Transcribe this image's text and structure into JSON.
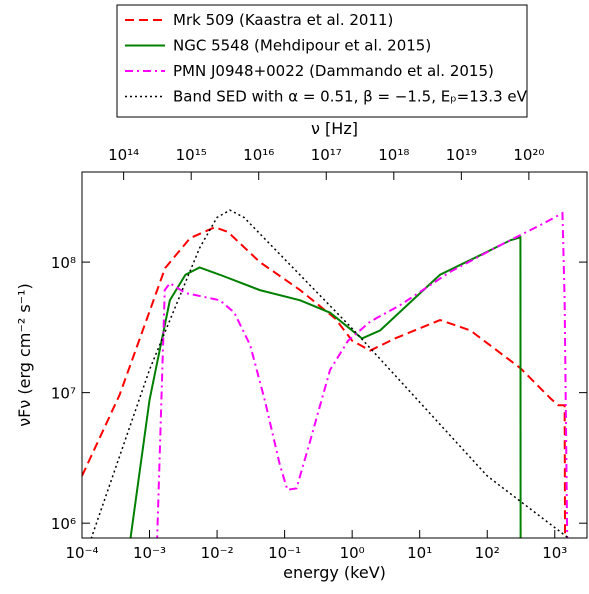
{
  "chart_data": {
    "type": "line",
    "xlabel": "energy (keV)",
    "ylabel": "νFν (erg cm⁻² s⁻¹)",
    "x2label": "ν [Hz]",
    "log_x": true,
    "log_y": true,
    "legend": "upper center",
    "xlim": [
      0.0001,
      3000
    ],
    "ylim": [
      770000,
      490000000
    ],
    "x2lim": [
      24180000000000,
      725400000000000000000
    ],
    "xticks": [
      {
        "value": 0.0001,
        "label": "10⁻⁴"
      },
      {
        "value": 0.001,
        "label": "10⁻³"
      },
      {
        "value": 0.01,
        "label": "10⁻²"
      },
      {
        "value": 0.1,
        "label": "10⁻¹"
      },
      {
        "value": 1,
        "label": "10⁰"
      },
      {
        "value": 10,
        "label": "10¹"
      },
      {
        "value": 100,
        "label": "10²"
      },
      {
        "value": 1000,
        "label": "10³"
      }
    ],
    "yticks": [
      {
        "value": 1000000,
        "label": "10⁶"
      },
      {
        "value": 10000000,
        "label": "10⁷"
      },
      {
        "value": 100000000,
        "label": "10⁸"
      }
    ],
    "x2ticks": [
      {
        "value": 100000000000000,
        "label": "10¹⁴"
      },
      {
        "value": 1000000000000000,
        "label": "10¹⁵"
      },
      {
        "value": 10000000000000000,
        "label": "10¹⁶"
      },
      {
        "value": 100000000000000000,
        "label": "10¹⁷"
      },
      {
        "value": 1000000000000000000,
        "label": "10¹⁸"
      },
      {
        "value": 10000000000000000000,
        "label": "10¹⁹"
      },
      {
        "value": 100000000000000000000,
        "label": "10²⁰"
      }
    ],
    "series": [
      {
        "name": "Mrk 509 (Kaastra et al. 2011)",
        "color": "#ff0000",
        "style": "dashed",
        "x": [
          0.0001,
          0.00036,
          0.0017,
          0.004,
          0.0093,
          0.0145,
          0.043,
          0.17,
          0.56,
          1.0,
          1.85,
          4.3,
          20,
          56,
          310,
          870,
          1130,
          1400,
          1420
        ],
        "values": [
          2300000,
          9600000,
          90000000,
          153000000,
          185000000,
          170000000,
          100000000,
          61000000,
          37000000,
          25000000,
          21000000,
          26000000,
          36000000,
          30000000,
          15400000,
          9000000,
          8000000,
          8000000,
          700000
        ]
      },
      {
        "name": "NGC 5548 (Mehdipour et al. 2015)",
        "color": "#008000",
        "style": "solid",
        "x": [
          0.00051,
          0.001,
          0.002,
          0.0034,
          0.0055,
          0.011,
          0.043,
          0.17,
          0.47,
          0.79,
          1.4,
          2.6,
          7.2,
          20,
          79,
          220,
          310,
          312
        ],
        "values": [
          700000,
          8800000,
          51000000,
          80000000,
          91000000,
          80000000,
          61000000,
          51000000,
          41000000,
          33000000,
          26000000,
          30000000,
          49000000,
          80000000,
          113000000,
          147000000,
          155000000,
          700000
        ]
      },
      {
        "name": "PMN J0948+0022 (Dammando et al. 2015)",
        "color": "#ff00ff",
        "style": "dashdot",
        "x": [
          0.00129,
          0.00168,
          0.002,
          0.0034,
          0.011,
          0.018,
          0.031,
          0.051,
          0.085,
          0.11,
          0.15,
          0.24,
          0.47,
          0.87,
          1.85,
          5.2,
          28,
          157,
          610,
          1300,
          1400,
          1530
        ],
        "values": [
          700000,
          61000000,
          69000000,
          58000000,
          51000000,
          41000000,
          23000000,
          8700000,
          2800000,
          1800000,
          1850000,
          4300000,
          14900000,
          25000000,
          35000000,
          47000000,
          84000000,
          135000000,
          192000000,
          237000000,
          51000000,
          700000
        ]
      },
      {
        "name": "Band SED with α = 0.51, β = −1.5, Eₚ=13.3 eV",
        "color": "#000000",
        "style": "dotted",
        "x": [
          0.000129,
          0.001,
          0.0055,
          0.01,
          0.0155,
          0.025,
          1,
          100,
          1700
        ],
        "values": [
          700000,
          15000000,
          128000000,
          220000000,
          250000000,
          220000000,
          31000000,
          2300000,
          750000
        ]
      }
    ]
  }
}
